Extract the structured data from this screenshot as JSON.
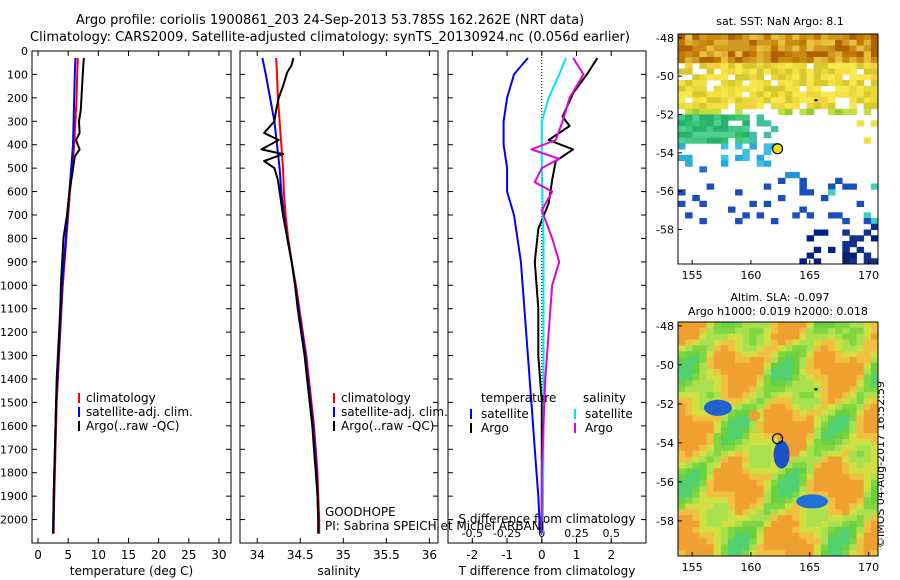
{
  "header": {
    "line1": "Argo profile: coriolis 1900861_203 24-Sep-2013 53.785S 162.262E (NRT data)",
    "line2": "Climatology: CARS2009. Satellite-adjusted climatology: synTS_20130924.nc (0.056d earlier)"
  },
  "sst_map": {
    "title": "sat. SST: NaN Argo: 8.1"
  },
  "sla_map": {
    "title1": "Altim. SLA: -0.097",
    "title2": "Argo h1000: 0.019 h2000: 0.018"
  },
  "watermark": "©IMOS 04-Aug-2017 16:52:59",
  "annotations": {
    "project": "GOODHOPE",
    "pi": "PI: Sabrina SPEICH et Michel ARBANI"
  },
  "colors": {
    "climatology": "#ff0000",
    "satellite": "#0000ff",
    "argo": "#000000",
    "sal_satellite": "#00e5e5",
    "sal_argo": "#e000e0"
  },
  "chart_data": [
    {
      "type": "line",
      "name": "temperature-profile",
      "xlabel": "temperature (deg C)",
      "ylabel": "",
      "xlim": [
        -1,
        32
      ],
      "ylim": [
        0,
        2100
      ],
      "xticks": [
        0,
        5,
        10,
        15,
        20,
        25,
        30
      ],
      "yticks": [
        0,
        100,
        200,
        300,
        400,
        500,
        600,
        700,
        800,
        900,
        1000,
        1100,
        1200,
        1300,
        1400,
        1500,
        1600,
        1700,
        1800,
        1900,
        2000
      ],
      "series": [
        {
          "name": "climatology",
          "color": "#ff0000",
          "points": [
            [
              6.6,
              30
            ],
            [
              6.5,
              100
            ],
            [
              6.4,
              200
            ],
            [
              6.2,
              300
            ],
            [
              6.0,
              400
            ],
            [
              5.7,
              500
            ],
            [
              5.3,
              600
            ],
            [
              5.0,
              700
            ],
            [
              4.7,
              800
            ],
            [
              4.4,
              900
            ],
            [
              4.1,
              1000
            ],
            [
              3.9,
              1100
            ],
            [
              3.7,
              1200
            ],
            [
              3.5,
              1300
            ],
            [
              3.3,
              1400
            ],
            [
              3.1,
              1500
            ],
            [
              3.0,
              1600
            ],
            [
              2.9,
              1700
            ],
            [
              2.8,
              1800
            ],
            [
              2.7,
              1900
            ],
            [
              2.6,
              2000
            ],
            [
              2.6,
              2060
            ]
          ]
        },
        {
          "name": "satellite-adj. clim.",
          "color": "#0000ff",
          "points": [
            [
              6.2,
              30
            ],
            [
              6.1,
              100
            ],
            [
              6.0,
              200
            ],
            [
              5.9,
              300
            ],
            [
              5.8,
              400
            ],
            [
              5.5,
              500
            ],
            [
              5.2,
              600
            ],
            [
              4.9,
              700
            ],
            [
              4.6,
              800
            ],
            [
              4.3,
              900
            ],
            [
              4.0,
              1000
            ],
            [
              3.8,
              1100
            ],
            [
              3.6,
              1200
            ],
            [
              3.4,
              1300
            ],
            [
              3.2,
              1400
            ],
            [
              3.0,
              1500
            ],
            [
              2.9,
              1600
            ],
            [
              2.8,
              1700
            ],
            [
              2.7,
              1800
            ],
            [
              2.6,
              1900
            ],
            [
              2.5,
              2000
            ],
            [
              2.5,
              2060
            ]
          ]
        },
        {
          "name": "Argo(..raw -QC)",
          "color": "#000000",
          "points": [
            [
              7.6,
              30
            ],
            [
              7.5,
              60
            ],
            [
              7.3,
              150
            ],
            [
              7.1,
              250
            ],
            [
              6.8,
              300
            ],
            [
              6.9,
              350
            ],
            [
              6.3,
              380
            ],
            [
              6.9,
              420
            ],
            [
              6.1,
              450
            ],
            [
              5.7,
              520
            ],
            [
              5.2,
              600
            ],
            [
              4.8,
              700
            ],
            [
              4.2,
              800
            ],
            [
              4.0,
              900
            ],
            [
              3.8,
              1000
            ],
            [
              3.7,
              1100
            ],
            [
              3.5,
              1200
            ],
            [
              3.3,
              1300
            ],
            [
              3.1,
              1400
            ],
            [
              3.0,
              1500
            ],
            [
              2.9,
              1600
            ],
            [
              2.8,
              1700
            ],
            [
              2.7,
              1800
            ],
            [
              2.6,
              1900
            ],
            [
              2.6,
              2000
            ],
            [
              2.5,
              2060
            ]
          ]
        }
      ],
      "legend": {
        "placement": "bottom-center",
        "entries": [
          "climatology",
          "satellite-adj. clim.",
          "Argo(..raw -QC)"
        ]
      }
    },
    {
      "type": "line",
      "name": "salinity-profile",
      "xlabel": "salinity",
      "ylabel": "",
      "xlim": [
        33.8,
        36.1
      ],
      "xticks": [
        34,
        34.5,
        35,
        35.5,
        36
      ],
      "xticklabels": [
        "34",
        "34.5",
        "35",
        "35.5",
        "36"
      ],
      "series": [
        {
          "name": "climatology",
          "color": "#ff0000",
          "points": [
            [
              34.22,
              30
            ],
            [
              34.23,
              100
            ],
            [
              34.24,
              200
            ],
            [
              34.26,
              300
            ],
            [
              34.28,
              400
            ],
            [
              34.3,
              500
            ],
            [
              34.31,
              600
            ],
            [
              34.33,
              700
            ],
            [
              34.36,
              800
            ],
            [
              34.4,
              900
            ],
            [
              34.45,
              1000
            ],
            [
              34.49,
              1100
            ],
            [
              34.53,
              1200
            ],
            [
              34.57,
              1300
            ],
            [
              34.6,
              1400
            ],
            [
              34.63,
              1500
            ],
            [
              34.66,
              1600
            ],
            [
              34.68,
              1700
            ],
            [
              34.7,
              1800
            ],
            [
              34.71,
              1900
            ],
            [
              34.72,
              2000
            ],
            [
              34.72,
              2060
            ]
          ]
        },
        {
          "name": "satellite-adj. clim.",
          "color": "#0000ff",
          "points": [
            [
              34.06,
              30
            ],
            [
              34.1,
              100
            ],
            [
              34.15,
              200
            ],
            [
              34.2,
              300
            ],
            [
              34.23,
              400
            ],
            [
              34.26,
              500
            ],
            [
              34.28,
              600
            ],
            [
              34.31,
              700
            ],
            [
              34.35,
              800
            ],
            [
              34.4,
              900
            ],
            [
              34.44,
              1000
            ],
            [
              34.48,
              1100
            ],
            [
              34.52,
              1200
            ],
            [
              34.56,
              1300
            ],
            [
              34.59,
              1400
            ],
            [
              34.62,
              1500
            ],
            [
              34.65,
              1600
            ],
            [
              34.67,
              1700
            ],
            [
              34.69,
              1800
            ],
            [
              34.7,
              1900
            ],
            [
              34.71,
              2000
            ],
            [
              34.71,
              2060
            ]
          ]
        },
        {
          "name": "Argo(..raw -QC)",
          "color": "#000000",
          "points": [
            [
              34.42,
              30
            ],
            [
              34.4,
              60
            ],
            [
              34.35,
              90
            ],
            [
              34.3,
              150
            ],
            [
              34.25,
              200
            ],
            [
              34.22,
              250
            ],
            [
              34.2,
              300
            ],
            [
              34.08,
              350
            ],
            [
              34.25,
              380
            ],
            [
              34.05,
              420
            ],
            [
              34.3,
              440
            ],
            [
              34.08,
              470
            ],
            [
              34.2,
              500
            ],
            [
              34.24,
              550
            ],
            [
              34.26,
              600
            ],
            [
              34.3,
              700
            ],
            [
              34.35,
              800
            ],
            [
              34.4,
              900
            ],
            [
              34.44,
              1000
            ],
            [
              34.47,
              1100
            ],
            [
              34.51,
              1200
            ],
            [
              34.55,
              1300
            ],
            [
              34.58,
              1400
            ],
            [
              34.61,
              1500
            ],
            [
              34.64,
              1600
            ],
            [
              34.66,
              1700
            ],
            [
              34.68,
              1800
            ],
            [
              34.7,
              1900
            ],
            [
              34.71,
              2000
            ],
            [
              34.71,
              2060
            ]
          ]
        }
      ],
      "legend": {
        "placement": "bottom-center",
        "entries": [
          "climatology",
          "satellite-adj. clim.",
          "Argo(..raw -QC)"
        ]
      }
    },
    {
      "type": "line",
      "name": "difference-profile",
      "xlabel": "T difference from climatology",
      "x2label": "S difference from climatology",
      "xlim": [
        -2.7,
        3.0
      ],
      "xticks": [
        -2,
        -1,
        0,
        1,
        2
      ],
      "x2ticks": [
        -0.5,
        -0.25,
        0,
        0.25,
        0.5
      ],
      "x2ticklabels": [
        "-0.5",
        "-0.25",
        "0",
        "0.25",
        "0.5"
      ],
      "x2scale": 4,
      "series": [
        {
          "name": "temperature satellite",
          "color": "#0000ff",
          "points": [
            [
              -0.4,
              30
            ],
            [
              -0.8,
              100
            ],
            [
              -1.0,
              200
            ],
            [
              -1.1,
              300
            ],
            [
              -1.1,
              400
            ],
            [
              -1.0,
              500
            ],
            [
              -1.0,
              600
            ],
            [
              -0.8,
              700
            ],
            [
              -0.6,
              900
            ],
            [
              -0.5,
              1100
            ],
            [
              -0.4,
              1300
            ],
            [
              -0.3,
              1500
            ],
            [
              -0.2,
              1700
            ],
            [
              -0.1,
              1900
            ],
            [
              -0.05,
              2060
            ]
          ]
        },
        {
          "name": "temperature Argo",
          "color": "#000000",
          "points": [
            [
              1.6,
              30
            ],
            [
              1.3,
              100
            ],
            [
              0.9,
              180
            ],
            [
              0.6,
              280
            ],
            [
              0.8,
              320
            ],
            [
              0.2,
              380
            ],
            [
              0.9,
              420
            ],
            [
              0.4,
              470
            ],
            [
              0.3,
              550
            ],
            [
              0.2,
              650
            ],
            [
              -0.1,
              760
            ],
            [
              -0.2,
              900
            ],
            [
              -0.1,
              1100
            ],
            [
              -0.1,
              1300
            ],
            [
              0.0,
              1500
            ],
            [
              0.0,
              1700
            ],
            [
              0.0,
              1900
            ],
            [
              0.0,
              2060
            ]
          ]
        },
        {
          "name": "salinity satellite",
          "color": "#00e5e5",
          "points": [
            [
              0.7,
              30
            ],
            [
              0.5,
              100
            ],
            [
              0.2,
              200
            ],
            [
              0.0,
              300
            ],
            [
              0.0,
              500
            ],
            [
              0.05,
              800
            ],
            [
              0.05,
              1200
            ],
            [
              0.05,
              1600
            ],
            [
              0.03,
              2060
            ]
          ]
        },
        {
          "name": "salinity Argo",
          "color": "#e000e0",
          "points": [
            [
              0.9,
              30
            ],
            [
              1.2,
              100
            ],
            [
              0.8,
              200
            ],
            [
              0.6,
              300
            ],
            [
              0.4,
              380
            ],
            [
              -0.3,
              420
            ],
            [
              0.5,
              460
            ],
            [
              0.0,
              500
            ],
            [
              -0.2,
              560
            ],
            [
              0.3,
              600
            ],
            [
              0.0,
              680
            ],
            [
              0.3,
              800
            ],
            [
              0.5,
              900
            ],
            [
              0.3,
              1000
            ],
            [
              0.2,
              1200
            ],
            [
              0.1,
              1400
            ],
            [
              0.05,
              1600
            ],
            [
              0.0,
              1800
            ],
            [
              0.0,
              2060
            ]
          ]
        }
      ],
      "legend": {
        "placement": "bottom-center",
        "headers": [
          "temperature",
          "salinity"
        ],
        "entries": [
          "satellite",
          "Argo",
          "satellite",
          "Argo"
        ]
      }
    },
    {
      "type": "heatmap",
      "name": "sst-map",
      "xlim": [
        153.8,
        170.8
      ],
      "ylim": [
        -59.8,
        -47.8
      ],
      "xticks": [
        155,
        160,
        165,
        170
      ],
      "yticks": [
        -48,
        -50,
        -52,
        -54,
        -56,
        -58
      ],
      "float_position": [
        162.262,
        -53.785
      ]
    },
    {
      "type": "heatmap",
      "name": "sla-map",
      "xlim": [
        153.8,
        170.8
      ],
      "ylim": [
        -59.8,
        -47.8
      ],
      "xticks": [
        155,
        160,
        165,
        170
      ],
      "yticks": [
        -48,
        -50,
        -52,
        -54,
        -56,
        -58
      ],
      "float_position": [
        162.262,
        -53.785
      ]
    }
  ]
}
